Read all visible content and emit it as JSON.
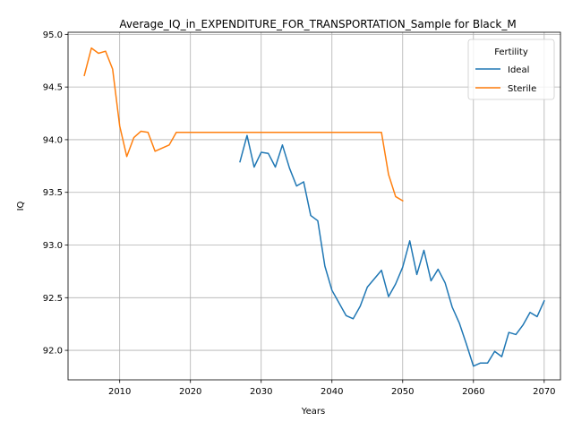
{
  "chart_data": {
    "type": "line",
    "title": "Average_IQ_in_EXPENDITURE_FOR_TRANSPORTATION_Sample for Black_M",
    "xlabel": "Years",
    "ylabel": "IQ",
    "xlim": [
      2002.7,
      2072.3
    ],
    "ylim": [
      91.72,
      95.02
    ],
    "xticks": [
      2010,
      2020,
      2030,
      2040,
      2050,
      2060,
      2070
    ],
    "yticks": [
      92.0,
      92.5,
      93.0,
      93.5,
      94.0,
      94.5,
      95.0
    ],
    "xtick_labels": [
      "2010",
      "2020",
      "2030",
      "2040",
      "2050",
      "2060",
      "2070"
    ],
    "ytick_labels": [
      "92.0",
      "92.5",
      "93.0",
      "93.5",
      "94.0",
      "94.5",
      "95.0"
    ],
    "grid": true,
    "legend": {
      "title": "Fertility",
      "placement": "top-right"
    },
    "series": [
      {
        "name": "Ideal",
        "color": "#1f77b4",
        "x": [
          2027,
          2028,
          2029,
          2030,
          2031,
          2032,
          2033,
          2034,
          2035,
          2036,
          2037,
          2038,
          2039,
          2040,
          2041,
          2042,
          2043,
          2044,
          2045,
          2046,
          2047,
          2048,
          2049,
          2050,
          2051,
          2052,
          2053,
          2054,
          2055,
          2056,
          2057,
          2058,
          2059,
          2060,
          2061,
          2062,
          2063,
          2064,
          2065,
          2066,
          2067,
          2068,
          2069,
          2070
        ],
        "y": [
          93.79,
          94.04,
          93.74,
          93.88,
          93.87,
          93.74,
          93.95,
          93.73,
          93.56,
          93.6,
          93.28,
          93.23,
          92.8,
          92.57,
          92.45,
          92.33,
          92.3,
          92.42,
          92.6,
          92.68,
          92.76,
          92.51,
          92.63,
          92.79,
          93.04,
          92.72,
          92.95,
          92.66,
          92.77,
          92.64,
          92.41,
          92.26,
          92.06,
          91.85,
          91.88,
          91.88,
          91.99,
          91.94,
          92.17,
          92.15,
          92.24,
          92.36,
          92.32,
          92.47
        ]
      },
      {
        "name": "Sterile",
        "color": "#ff7f0e",
        "x": [
          2005,
          2006,
          2007,
          2008,
          2009,
          2010,
          2011,
          2012,
          2013,
          2014,
          2015,
          2016,
          2017,
          2018,
          2019,
          2020,
          2021,
          2022,
          2023,
          2024,
          2025,
          2026,
          2027,
          2028,
          2029,
          2030,
          2031,
          2032,
          2033,
          2034,
          2035,
          2036,
          2037,
          2038,
          2039,
          2040,
          2041,
          2042,
          2043,
          2044,
          2045,
          2046,
          2047,
          2048,
          2049,
          2050
        ],
        "y": [
          94.61,
          94.87,
          94.82,
          94.84,
          94.67,
          94.13,
          93.84,
          94.02,
          94.08,
          94.07,
          93.89,
          93.92,
          93.95,
          94.07,
          94.07,
          94.07,
          94.07,
          94.07,
          94.07,
          94.07,
          94.07,
          94.07,
          94.07,
          94.07,
          94.07,
          94.07,
          94.07,
          94.07,
          94.07,
          94.07,
          94.07,
          94.07,
          94.07,
          94.07,
          94.07,
          94.07,
          94.07,
          94.07,
          94.07,
          94.07,
          94.07,
          94.07,
          94.07,
          93.67,
          93.46,
          93.42
        ]
      }
    ]
  }
}
